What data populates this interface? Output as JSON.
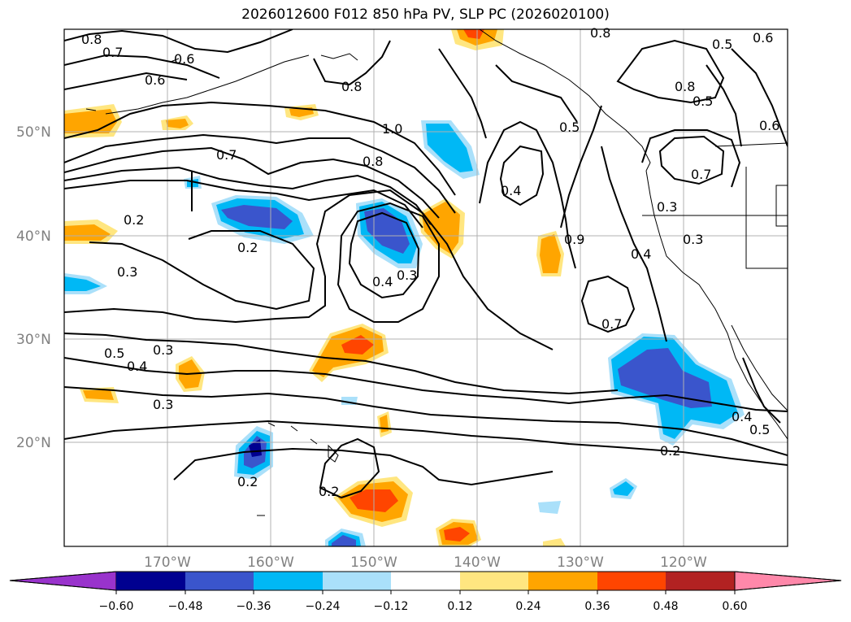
{
  "title": "2026012600 F012 850 hPa PV, SLP PC (2026020100)",
  "map": {
    "lat_labels": [
      "50°N",
      "40°N",
      "30°N",
      "20°N"
    ],
    "lon_labels": [
      "170°W",
      "160°W",
      "150°W",
      "140°W",
      "130°W",
      "120°W"
    ],
    "grid_color": "#b0b0b0",
    "coast_color": "#000000"
  },
  "contour_labels": [
    "0.8",
    "0.7",
    "0.6",
    "0.6",
    "0.8",
    "0.8",
    "0.5",
    "0.6",
    "0.8",
    "0.5",
    "0.6",
    "1.0",
    "0.7",
    "0.8",
    "0.5",
    "0.7",
    "0.4",
    "0.2",
    "0.2",
    "0.9",
    "0.3",
    "0.3",
    "0.4",
    "0.3",
    "0.4",
    "0.3",
    "0.5",
    "0.4",
    "0.7",
    "0.3",
    "0.3",
    "0.4",
    "0.5",
    "0.2",
    "0.2",
    "0.2"
  ],
  "colorbar": {
    "ticks": [
      "−0.60",
      "−0.48",
      "−0.36",
      "−0.24",
      "−0.12",
      "0.12",
      "0.24",
      "0.36",
      "0.48",
      "0.60"
    ],
    "colors": [
      "#9933cc",
      "#000090",
      "#3a55cc",
      "#00b8f5",
      "#aae0fa",
      "#ffffff",
      "#ffe680",
      "#ffa500",
      "#ff4500",
      "#b22222",
      "#ff88aa"
    ]
  }
}
